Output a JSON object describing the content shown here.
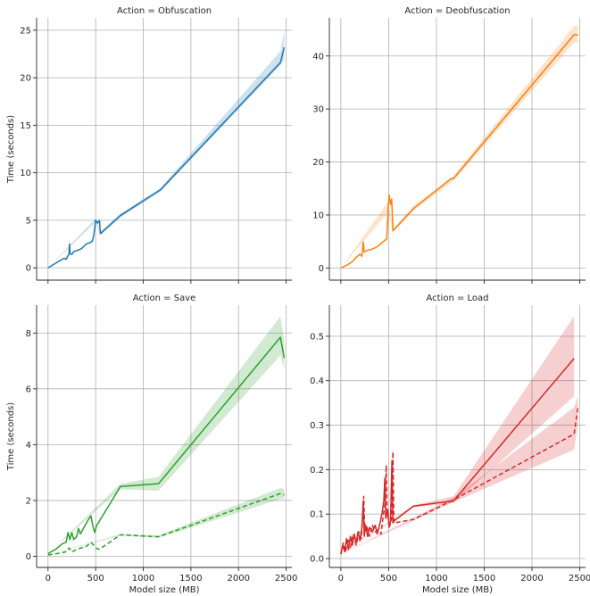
{
  "chart_data": [
    {
      "type": "line",
      "title": "Action = Obfuscation",
      "xlabel": "",
      "ylabel": "Time (seconds)",
      "color": "#1f77b4",
      "xlim": [
        -120,
        2560
      ],
      "ylim": [
        -1.3,
        26.3
      ],
      "xticks": [
        0,
        500,
        1000,
        1500,
        2000,
        2500
      ],
      "yticks": [
        0,
        5,
        10,
        15,
        20,
        25
      ],
      "x_tick_labels_visible": false,
      "grid": true,
      "series": [
        {
          "style": "solid",
          "points": [
            [
              0,
              0.0
            ],
            [
              50,
              0.3
            ],
            [
              100,
              0.6
            ],
            [
              140,
              0.85
            ],
            [
              170,
              1.0
            ],
            [
              190,
              0.9
            ],
            [
              205,
              1.2
            ],
            [
              220,
              1.4
            ],
            [
              225,
              2.5
            ],
            [
              232,
              1.5
            ],
            [
              250,
              1.4
            ],
            [
              270,
              1.7
            ],
            [
              300,
              1.8
            ],
            [
              350,
              2.0
            ],
            [
              400,
              2.5
            ],
            [
              440,
              2.65
            ],
            [
              465,
              2.8
            ],
            [
              480,
              3.4
            ],
            [
              500,
              5.0
            ],
            [
              520,
              4.7
            ],
            [
              540,
              5.0
            ],
            [
              550,
              3.6
            ],
            [
              760,
              5.5
            ],
            [
              1180,
              8.2
            ],
            [
              2440,
              21.6
            ],
            [
              2480,
              23.2
            ]
          ],
          "band_upper": [
            [
              0,
              0.0
            ],
            [
              500,
              5.2
            ],
            [
              550,
              3.8
            ],
            [
              760,
              5.7
            ],
            [
              1180,
              8.4
            ],
            [
              2440,
              22.8
            ],
            [
              2480,
              24.9
            ]
          ],
          "band_lower": [
            [
              0,
              0.0
            ],
            [
              500,
              4.8
            ],
            [
              550,
              3.4
            ],
            [
              760,
              5.3
            ],
            [
              1180,
              8.0
            ],
            [
              2440,
              21.3
            ],
            [
              2480,
              21.9
            ]
          ]
        }
      ]
    },
    {
      "type": "line",
      "title": "Action = Deobfuscation",
      "xlabel": "",
      "ylabel": "",
      "color": "#ff7f0e",
      "xlim": [
        -120,
        2560
      ],
      "ylim": [
        -2.3,
        47.2
      ],
      "xticks": [
        0,
        500,
        1000,
        1500,
        2000,
        2500
      ],
      "yticks": [
        0,
        10,
        20,
        30,
        40
      ],
      "x_tick_labels_visible": false,
      "grid": true,
      "series": [
        {
          "style": "solid",
          "points": [
            [
              0,
              0.0
            ],
            [
              60,
              0.5
            ],
            [
              120,
              1.2
            ],
            [
              160,
              2.0
            ],
            [
              200,
              2.6
            ],
            [
              220,
              2.2
            ],
            [
              235,
              4.9
            ],
            [
              245,
              3.0
            ],
            [
              270,
              3.3
            ],
            [
              320,
              3.5
            ],
            [
              380,
              4.0
            ],
            [
              440,
              4.9
            ],
            [
              480,
              5.5
            ],
            [
              495,
              11.0
            ],
            [
              505,
              13.8
            ],
            [
              520,
              12.0
            ],
            [
              532,
              13.0
            ],
            [
              545,
              7.0
            ],
            [
              760,
              11.2
            ],
            [
              1150,
              16.8
            ],
            [
              1180,
              16.9
            ],
            [
              2440,
              44.0
            ],
            [
              2480,
              44.0
            ]
          ],
          "band_upper": [
            [
              0,
              0.0
            ],
            [
              495,
              12.5
            ],
            [
              545,
              7.4
            ],
            [
              760,
              11.7
            ],
            [
              1180,
              17.4
            ],
            [
              2440,
              45.7
            ],
            [
              2480,
              45.8
            ]
          ],
          "band_lower": [
            [
              0,
              0.0
            ],
            [
              495,
              10.5
            ],
            [
              545,
              6.7
            ],
            [
              760,
              10.8
            ],
            [
              1180,
              16.5
            ],
            [
              2440,
              42.5
            ],
            [
              2480,
              42.5
            ]
          ]
        }
      ]
    },
    {
      "type": "line",
      "title": "Action = Save",
      "xlabel": "Model size (MB)",
      "ylabel": "Time (seconds)",
      "color": "#2ca02c",
      "xlim": [
        -120,
        2560
      ],
      "ylim": [
        -0.4,
        9.0
      ],
      "xticks": [
        0,
        500,
        1000,
        1500,
        2000,
        2500
      ],
      "yticks": [
        0,
        2,
        4,
        6,
        8
      ],
      "x_tick_labels_visible": true,
      "grid": true,
      "series": [
        {
          "style": "solid",
          "points": [
            [
              0,
              0.1
            ],
            [
              80,
              0.25
            ],
            [
              150,
              0.45
            ],
            [
              190,
              0.5
            ],
            [
              210,
              0.85
            ],
            [
              230,
              0.6
            ],
            [
              250,
              0.85
            ],
            [
              270,
              0.6
            ],
            [
              300,
              0.7
            ],
            [
              320,
              1.0
            ],
            [
              340,
              0.8
            ],
            [
              380,
              1.05
            ],
            [
              420,
              1.3
            ],
            [
              450,
              1.45
            ],
            [
              470,
              1.1
            ],
            [
              490,
              0.85
            ],
            [
              510,
              1.1
            ],
            [
              760,
              2.5
            ],
            [
              1160,
              2.6
            ],
            [
              2440,
              7.85
            ],
            [
              2480,
              7.1
            ]
          ],
          "band_upper": [
            [
              0,
              0.1
            ],
            [
              760,
              2.6
            ],
            [
              1160,
              2.85
            ],
            [
              2440,
              8.6
            ],
            [
              2480,
              7.7
            ]
          ],
          "band_lower": [
            [
              0,
              0.1
            ],
            [
              760,
              2.4
            ],
            [
              1160,
              2.35
            ],
            [
              2440,
              7.2
            ],
            [
              2480,
              6.7
            ]
          ]
        },
        {
          "style": "dashed",
          "points": [
            [
              0,
              0.05
            ],
            [
              100,
              0.1
            ],
            [
              180,
              0.15
            ],
            [
              220,
              0.3
            ],
            [
              250,
              0.15
            ],
            [
              300,
              0.25
            ],
            [
              350,
              0.3
            ],
            [
              400,
              0.35
            ],
            [
              450,
              0.5
            ],
            [
              480,
              0.4
            ],
            [
              510,
              0.28
            ],
            [
              540,
              0.25
            ],
            [
              760,
              0.77
            ],
            [
              1160,
              0.7
            ],
            [
              2440,
              2.25
            ],
            [
              2480,
              2.2
            ]
          ],
          "band_upper": [
            [
              0,
              0.05
            ],
            [
              760,
              0.8
            ],
            [
              1160,
              0.75
            ],
            [
              2440,
              2.45
            ],
            [
              2480,
              2.4
            ]
          ],
          "band_lower": [
            [
              0,
              0.05
            ],
            [
              760,
              0.74
            ],
            [
              1160,
              0.66
            ],
            [
              2440,
              2.05
            ],
            [
              2480,
              2.05
            ]
          ]
        }
      ]
    },
    {
      "type": "line",
      "title": "Action = Load",
      "xlabel": "Model size (MB)",
      "ylabel": "",
      "color": "#d62728",
      "xlim": [
        -120,
        2560
      ],
      "ylim": [
        -0.02,
        0.57
      ],
      "xticks": [
        0,
        500,
        1000,
        1500,
        2000,
        2500
      ],
      "yticks": [
        0.0,
        0.1,
        0.2,
        0.3,
        0.4,
        0.5
      ],
      "x_tick_labels_visible": true,
      "grid": true,
      "series": [
        {
          "style": "solid",
          "points": [
            [
              0,
              0.01
            ],
            [
              20,
              0.03
            ],
            [
              40,
              0.015
            ],
            [
              60,
              0.045
            ],
            [
              80,
              0.02
            ],
            [
              100,
              0.05
            ],
            [
              120,
              0.03
            ],
            [
              140,
              0.055
            ],
            [
              160,
              0.035
            ],
            [
              180,
              0.06
            ],
            [
              200,
              0.04
            ],
            [
              220,
              0.07
            ],
            [
              235,
              0.13
            ],
            [
              245,
              0.05
            ],
            [
              260,
              0.075
            ],
            [
              280,
              0.05
            ],
            [
              300,
              0.07
            ],
            [
              330,
              0.06
            ],
            [
              360,
              0.075
            ],
            [
              380,
              0.055
            ],
            [
              410,
              0.08
            ],
            [
              430,
              0.1
            ],
            [
              450,
              0.13
            ],
            [
              460,
              0.18
            ],
            [
              470,
              0.09
            ],
            [
              490,
              0.11
            ],
            [
              505,
              0.07
            ],
            [
              520,
              0.085
            ],
            [
              535,
              0.22
            ],
            [
              545,
              0.08
            ],
            [
              560,
              0.085
            ],
            [
              760,
              0.118
            ],
            [
              1180,
              0.13
            ],
            [
              2440,
              0.45
            ]
          ],
          "band_upper": [
            [
              0,
              0.01
            ],
            [
              760,
              0.12
            ],
            [
              1180,
              0.14
            ],
            [
              2440,
              0.545
            ]
          ],
          "band_lower": [
            [
              0,
              0.01
            ],
            [
              760,
              0.115
            ],
            [
              1180,
              0.125
            ],
            [
              2440,
              0.365
            ]
          ]
        },
        {
          "style": "dashed",
          "points": [
            [
              0,
              0.01
            ],
            [
              25,
              0.035
            ],
            [
              50,
              0.015
            ],
            [
              75,
              0.045
            ],
            [
              100,
              0.025
            ],
            [
              130,
              0.055
            ],
            [
              160,
              0.03
            ],
            [
              190,
              0.06
            ],
            [
              215,
              0.045
            ],
            [
              240,
              0.14
            ],
            [
              250,
              0.06
            ],
            [
              275,
              0.07
            ],
            [
              300,
              0.05
            ],
            [
              330,
              0.075
            ],
            [
              360,
              0.06
            ],
            [
              390,
              0.065
            ],
            [
              420,
              0.055
            ],
            [
              440,
              0.09
            ],
            [
              460,
              0.12
            ],
            [
              475,
              0.21
            ],
            [
              485,
              0.1
            ],
            [
              500,
              0.09
            ],
            [
              515,
              0.075
            ],
            [
              530,
              0.09
            ],
            [
              545,
              0.24
            ],
            [
              555,
              0.08
            ],
            [
              760,
              0.088
            ],
            [
              1180,
              0.132
            ],
            [
              2440,
              0.28
            ],
            [
              2480,
              0.34
            ]
          ],
          "band_upper": [
            [
              0,
              0.01
            ],
            [
              760,
              0.092
            ],
            [
              1180,
              0.138
            ],
            [
              2440,
              0.34
            ],
            [
              2480,
              0.365
            ]
          ],
          "band_lower": [
            [
              0,
              0.01
            ],
            [
              760,
              0.085
            ],
            [
              1180,
              0.127
            ],
            [
              2440,
              0.245
            ],
            [
              2480,
              0.3
            ]
          ]
        }
      ]
    }
  ]
}
